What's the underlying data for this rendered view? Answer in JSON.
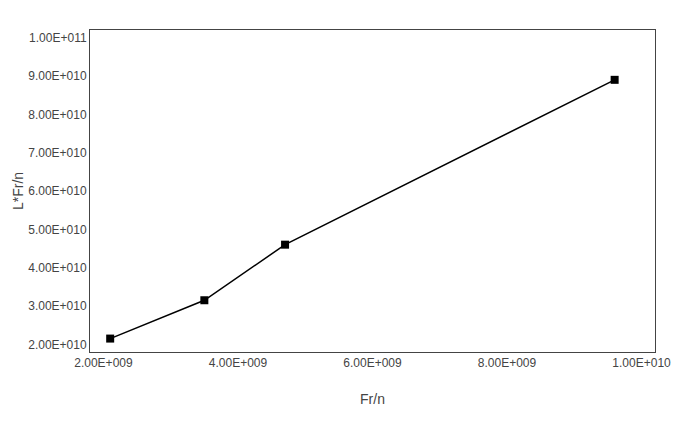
{
  "chart_data": {
    "type": "line",
    "x": [
      2100000000.0,
      3500000000.0,
      4700000000.0,
      9600000000.0
    ],
    "values": [
      21500000000.0,
      31500000000.0,
      46000000000.0,
      89000000000.0
    ],
    "xlabel": "Fr/n",
    "ylabel": "L*Fr/n",
    "xlim": [
      1800000000.0,
      10200000000.0
    ],
    "ylim": [
      18000000000.0,
      102000000000.0
    ],
    "xticks": [
      {
        "value": 2000000000.0,
        "label": "2.00E+009"
      },
      {
        "value": 4000000000.0,
        "label": "4.00E+009"
      },
      {
        "value": 6000000000.0,
        "label": "6.00E+009"
      },
      {
        "value": 8000000000.0,
        "label": "8.00E+009"
      },
      {
        "value": 10000000000.0,
        "label": "1.00E+010"
      }
    ],
    "yticks": [
      {
        "value": 20000000000.0,
        "label": "2.00E+010"
      },
      {
        "value": 30000000000.0,
        "label": "3.00E+010"
      },
      {
        "value": 40000000000.0,
        "label": "4.00E+010"
      },
      {
        "value": 50000000000.0,
        "label": "5.00E+010"
      },
      {
        "value": 60000000000.0,
        "label": "6.00E+010"
      },
      {
        "value": 70000000000.0,
        "label": "7.00E+010"
      },
      {
        "value": 80000000000.0,
        "label": "8.00E+010"
      },
      {
        "value": 90000000000.0,
        "label": "9.00E+010"
      },
      {
        "value": 100000000000.0,
        "label": "1.00E+011"
      }
    ],
    "color": "#000000",
    "marker": "square",
    "line_style": "solid",
    "grid": false
  }
}
